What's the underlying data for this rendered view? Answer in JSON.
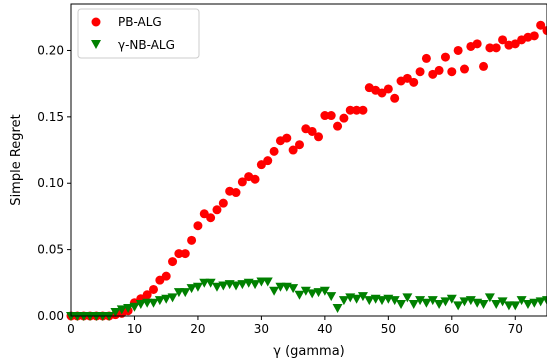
{
  "chart_data": {
    "type": "scatter",
    "xlabel": "γ (gamma)",
    "ylabel": "Simple Regret",
    "xlim": [
      0,
      75
    ],
    "ylim": [
      0,
      0.235
    ],
    "xticks": [
      0,
      10,
      20,
      30,
      40,
      50,
      60,
      70
    ],
    "yticks": [
      0.0,
      0.05,
      0.1,
      0.15,
      0.2
    ],
    "xtick_labels": [
      "0",
      "10",
      "20",
      "30",
      "40",
      "50",
      "60",
      "70"
    ],
    "ytick_labels": [
      "0.00",
      "0.05",
      "0.10",
      "0.15",
      "0.20"
    ],
    "grid": false,
    "legend_position": "top-left",
    "series": [
      {
        "name": "PB-ALG",
        "marker": "circle",
        "color": "#ff0000",
        "x": [
          0,
          1,
          2,
          3,
          4,
          5,
          6,
          7,
          8,
          9,
          10,
          11,
          12,
          13,
          14,
          15,
          16,
          17,
          18,
          19,
          20,
          21,
          22,
          23,
          24,
          25,
          26,
          27,
          28,
          29,
          30,
          31,
          32,
          33,
          34,
          35,
          36,
          37,
          38,
          39,
          40,
          41,
          42,
          43,
          44,
          45,
          46,
          47,
          48,
          49,
          50,
          51,
          52,
          53,
          54,
          55,
          56,
          57,
          58,
          59,
          60,
          61,
          62,
          63,
          64,
          65,
          66,
          67,
          68,
          69,
          70,
          71,
          72,
          73,
          74,
          75
        ],
        "values": [
          0.0,
          0.0,
          0.0,
          0.0,
          0.0,
          0.0,
          0.0,
          0.001,
          0.002,
          0.004,
          0.01,
          0.013,
          0.016,
          0.02,
          0.027,
          0.03,
          0.041,
          0.047,
          0.047,
          0.057,
          0.068,
          0.077,
          0.074,
          0.08,
          0.085,
          0.094,
          0.093,
          0.101,
          0.105,
          0.103,
          0.114,
          0.117,
          0.124,
          0.132,
          0.134,
          0.125,
          0.129,
          0.141,
          0.139,
          0.135,
          0.151,
          0.151,
          0.143,
          0.149,
          0.155,
          0.155,
          0.155,
          0.172,
          0.17,
          0.168,
          0.171,
          0.164,
          0.177,
          0.179,
          0.176,
          0.184,
          0.194,
          0.182,
          0.185,
          0.195,
          0.184,
          0.2,
          0.186,
          0.203,
          0.205,
          0.188,
          0.202,
          0.202,
          0.208,
          0.204,
          0.205,
          0.208,
          0.21,
          0.211,
          0.219,
          0.215
        ]
      },
      {
        "name": "γ-NB-ALG",
        "marker": "triangle-down",
        "color": "#008000",
        "x": [
          0,
          1,
          2,
          3,
          4,
          5,
          6,
          7,
          8,
          9,
          10,
          11,
          12,
          13,
          14,
          15,
          16,
          17,
          18,
          19,
          20,
          21,
          22,
          23,
          24,
          25,
          26,
          27,
          28,
          29,
          30,
          31,
          32,
          33,
          34,
          35,
          36,
          37,
          38,
          39,
          40,
          41,
          42,
          43,
          44,
          45,
          46,
          47,
          48,
          49,
          50,
          51,
          52,
          53,
          54,
          55,
          56,
          57,
          58,
          59,
          60,
          61,
          62,
          63,
          64,
          65,
          66,
          67,
          68,
          69,
          70,
          71,
          72,
          73,
          74,
          75
        ],
        "values": [
          0.0,
          0.0,
          0.0,
          0.0,
          0.0,
          0.0,
          0.0,
          0.003,
          0.005,
          0.006,
          0.007,
          0.009,
          0.01,
          0.01,
          0.012,
          0.013,
          0.014,
          0.018,
          0.018,
          0.021,
          0.022,
          0.025,
          0.025,
          0.022,
          0.023,
          0.024,
          0.023,
          0.024,
          0.025,
          0.024,
          0.026,
          0.026,
          0.019,
          0.022,
          0.022,
          0.021,
          0.016,
          0.019,
          0.017,
          0.018,
          0.019,
          0.015,
          0.006,
          0.012,
          0.014,
          0.013,
          0.015,
          0.012,
          0.013,
          0.012,
          0.013,
          0.012,
          0.009,
          0.014,
          0.009,
          0.012,
          0.01,
          0.012,
          0.009,
          0.011,
          0.013,
          0.008,
          0.011,
          0.012,
          0.01,
          0.009,
          0.014,
          0.009,
          0.011,
          0.008,
          0.008,
          0.012,
          0.009,
          0.01,
          0.011,
          0.012
        ]
      }
    ]
  }
}
